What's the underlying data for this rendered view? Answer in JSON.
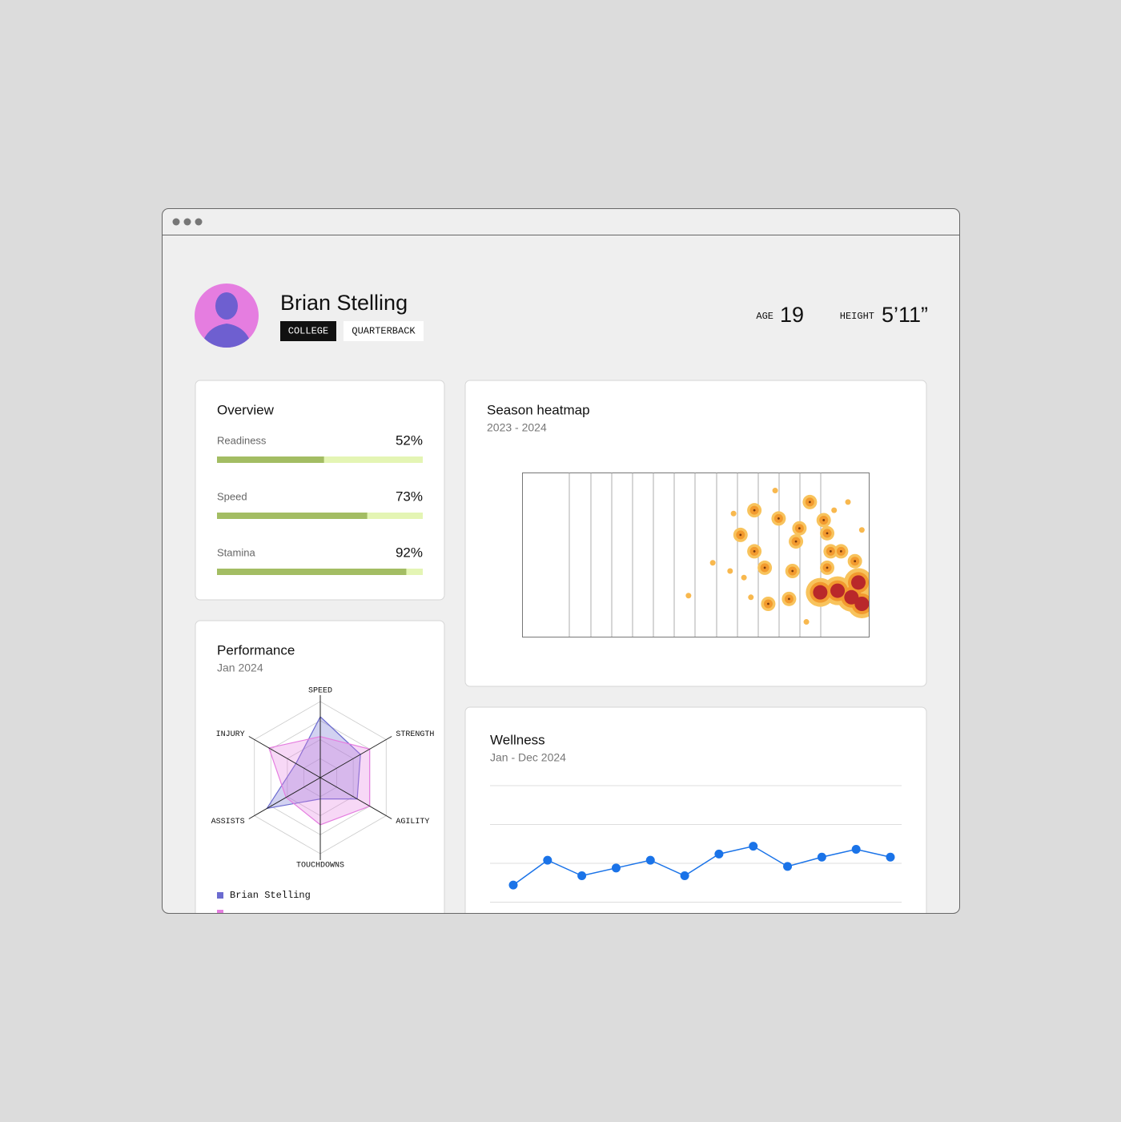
{
  "profile": {
    "name": "Brian Stelling",
    "tags": [
      "COLLEGE",
      "QUARTERBACK"
    ],
    "stats": [
      {
        "label": "AGE",
        "value": "19"
      },
      {
        "label": "HEIGHT",
        "value": "5’11”"
      }
    ]
  },
  "overview": {
    "title": "Overview",
    "xlim": [
      0,
      100
    ],
    "color": "#a3bd63",
    "track_color": "#e4f5b4",
    "metrics": [
      {
        "label": "Readiness",
        "value": 52,
        "value_label": "52%"
      },
      {
        "label": "Speed",
        "value": 73,
        "value_label": "73%"
      },
      {
        "label": "Stamina",
        "value": 92,
        "value_label": "92%"
      }
    ]
  },
  "charts": [
    {
      "type": "radar",
      "title": "Performance",
      "subtitle": "Jan 2024",
      "categories": [
        "SPEED",
        "STRENGTH",
        "AGILITY",
        "TOUCHDOWNS",
        "ASSISTS",
        "INJURY"
      ],
      "rlim": [
        0,
        100
      ],
      "rticks": [
        25,
        50,
        75,
        100
      ],
      "series": [
        {
          "name": "Brian Stelling",
          "color": "#6b6bd0",
          "values": [
            80,
            61,
            56,
            28,
            81,
            37
          ]
        },
        {
          "name": null,
          "color": "#e57de0",
          "values": [
            54,
            75,
            75,
            62,
            52,
            78
          ]
        }
      ]
    },
    {
      "type": "heatmap",
      "title": "Season heatmap",
      "subtitle": "2023 - 2024",
      "xlim": [
        0,
        100
      ],
      "ylim": [
        0,
        100
      ],
      "points": [
        {
          "x": 48,
          "y": 25,
          "intensity": 1
        },
        {
          "x": 55,
          "y": 45,
          "intensity": 1
        },
        {
          "x": 60,
          "y": 40,
          "intensity": 1
        },
        {
          "x": 61,
          "y": 75,
          "intensity": 1
        },
        {
          "x": 63,
          "y": 62,
          "intensity": 2
        },
        {
          "x": 64,
          "y": 36,
          "intensity": 1
        },
        {
          "x": 66,
          "y": 24,
          "intensity": 1
        },
        {
          "x": 67,
          "y": 77,
          "intensity": 2
        },
        {
          "x": 67,
          "y": 52,
          "intensity": 2
        },
        {
          "x": 70,
          "y": 42,
          "intensity": 2
        },
        {
          "x": 71,
          "y": 20,
          "intensity": 2
        },
        {
          "x": 73,
          "y": 89,
          "intensity": 1
        },
        {
          "x": 74,
          "y": 72,
          "intensity": 2
        },
        {
          "x": 77,
          "y": 23,
          "intensity": 2
        },
        {
          "x": 78,
          "y": 40,
          "intensity": 2
        },
        {
          "x": 82,
          "y": 9,
          "intensity": 1
        },
        {
          "x": 83,
          "y": 82,
          "intensity": 2
        },
        {
          "x": 90,
          "y": 77,
          "intensity": 1
        },
        {
          "x": 94,
          "y": 82,
          "intensity": 1
        },
        {
          "x": 98,
          "y": 65,
          "intensity": 1
        },
        {
          "x": 79,
          "y": 58,
          "intensity": 2
        },
        {
          "x": 80,
          "y": 66,
          "intensity": 2
        },
        {
          "x": 87,
          "y": 71,
          "intensity": 2
        },
        {
          "x": 88,
          "y": 63,
          "intensity": 2
        },
        {
          "x": 89,
          "y": 52,
          "intensity": 2
        },
        {
          "x": 92,
          "y": 52,
          "intensity": 2
        },
        {
          "x": 88,
          "y": 42,
          "intensity": 2
        },
        {
          "x": 96,
          "y": 46,
          "intensity": 2
        },
        {
          "x": 86,
          "y": 27,
          "intensity": 3
        },
        {
          "x": 91,
          "y": 28,
          "intensity": 3
        },
        {
          "x": 95,
          "y": 24,
          "intensity": 3
        },
        {
          "x": 98,
          "y": 20,
          "intensity": 3
        },
        {
          "x": 97,
          "y": 33,
          "intensity": 3
        }
      ]
    },
    {
      "type": "line",
      "title": "Wellness",
      "subtitle": "Jan - Dec 2024",
      "categories": [
        null,
        null,
        null,
        null,
        null,
        null,
        null,
        null,
        null,
        null,
        null,
        null
      ],
      "series": [
        {
          "name": null,
          "color": "#1a73e8",
          "values": [
            36,
            52,
            42,
            47,
            52,
            42,
            56,
            61,
            48,
            54,
            59,
            54
          ]
        }
      ],
      "ylim": [
        0,
        100
      ],
      "yticks": [
        25,
        50,
        75,
        100
      ],
      "grid": true
    }
  ]
}
